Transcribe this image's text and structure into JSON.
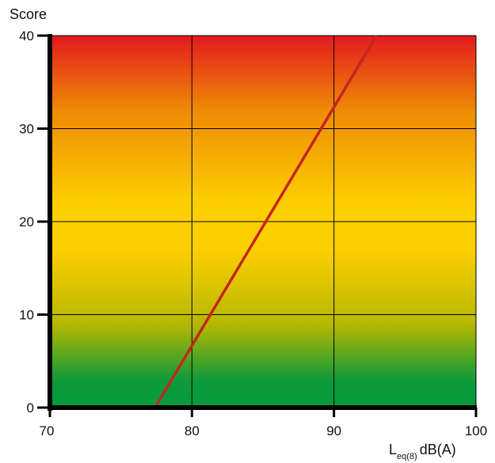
{
  "chart_data": {
    "type": "line",
    "title": "",
    "ylabel": "Score",
    "xlabel": {
      "main": "L",
      "subscript": "eq(8)",
      "unit": "dB(A)"
    },
    "xlim": [
      70,
      100
    ],
    "ylim": [
      0,
      40
    ],
    "x_ticks": [
      70,
      80,
      90,
      100
    ],
    "y_ticks": [
      0,
      10,
      20,
      30,
      40
    ],
    "grid": true,
    "series": [
      {
        "x": [
          77.4,
          93.0
        ],
        "y": [
          0,
          40
        ],
        "color": "#c4261e"
      }
    ],
    "background_gradient": [
      {
        "value": 40,
        "color": "#e3191f"
      },
      {
        "value": 32,
        "color": "#ef8a05"
      },
      {
        "value": 22,
        "color": "#fccf00"
      },
      {
        "value": 17,
        "color": "#fccf00"
      },
      {
        "value": 9,
        "color": "#b6b800"
      },
      {
        "value": 3,
        "color": "#109a3a"
      },
      {
        "value": 0,
        "color": "#009a3e"
      }
    ]
  }
}
